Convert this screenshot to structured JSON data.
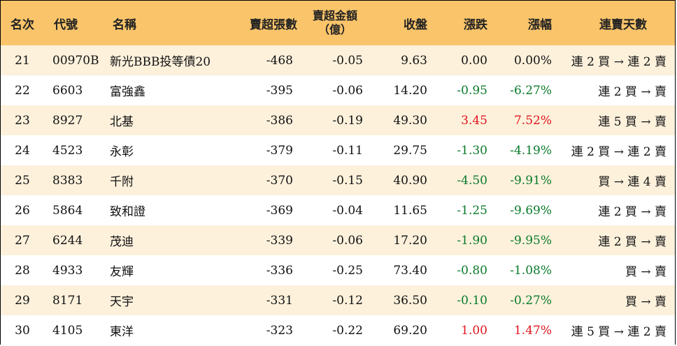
{
  "headers": {
    "rank": "名次",
    "code": "代號",
    "name": "名稱",
    "sell_volume": "賣超張數",
    "sell_amount_line1": "賣超金額",
    "sell_amount_line2": "（億）",
    "close": "收盤",
    "change": "漲跌",
    "change_pct": "漲幅",
    "consecutive_days": "連賣天數"
  },
  "colors": {
    "header_bg": "#f9c46a",
    "stripe_bg": "#fdf1dc",
    "up": "#e0141e",
    "down": "#0a7a2a"
  },
  "rows": [
    {
      "rank": "21",
      "code": "00970B",
      "name": "新光BBB投等債20",
      "volume": "-468",
      "amount": "-0.05",
      "close": "9.63",
      "change": "0.00",
      "pct": "0.00%",
      "days": "連 2 買 → 連 2 賣",
      "dir": "flat"
    },
    {
      "rank": "22",
      "code": "6603",
      "name": "富強鑫",
      "volume": "-395",
      "amount": "-0.06",
      "close": "14.20",
      "change": "-0.95",
      "pct": "-6.27%",
      "days": "連 2 買 → 賣",
      "dir": "down"
    },
    {
      "rank": "23",
      "code": "8927",
      "name": "北基",
      "volume": "-386",
      "amount": "-0.19",
      "close": "49.30",
      "change": "3.45",
      "pct": "7.52%",
      "days": "連 5 買 → 賣",
      "dir": "up"
    },
    {
      "rank": "24",
      "code": "4523",
      "name": "永彰",
      "volume": "-379",
      "amount": "-0.11",
      "close": "29.75",
      "change": "-1.30",
      "pct": "-4.19%",
      "days": "連 2 買 → 連 2 賣",
      "dir": "down"
    },
    {
      "rank": "25",
      "code": "8383",
      "name": "千附",
      "volume": "-370",
      "amount": "-0.15",
      "close": "40.90",
      "change": "-4.50",
      "pct": "-9.91%",
      "days": "買 → 連 4 賣",
      "dir": "down"
    },
    {
      "rank": "26",
      "code": "5864",
      "name": "致和證",
      "volume": "-369",
      "amount": "-0.04",
      "close": "11.65",
      "change": "-1.25",
      "pct": "-9.69%",
      "days": "連 2 買 → 賣",
      "dir": "down"
    },
    {
      "rank": "27",
      "code": "6244",
      "name": "茂迪",
      "volume": "-339",
      "amount": "-0.06",
      "close": "17.20",
      "change": "-1.90",
      "pct": "-9.95%",
      "days": "連 2 買 → 賣",
      "dir": "down"
    },
    {
      "rank": "28",
      "code": "4933",
      "name": "友輝",
      "volume": "-336",
      "amount": "-0.25",
      "close": "73.40",
      "change": "-0.80",
      "pct": "-1.08%",
      "days": "買 → 賣",
      "dir": "down"
    },
    {
      "rank": "29",
      "code": "8171",
      "name": "天宇",
      "volume": "-331",
      "amount": "-0.12",
      "close": "36.50",
      "change": "-0.10",
      "pct": "-0.27%",
      "days": "買 → 賣",
      "dir": "down"
    },
    {
      "rank": "30",
      "code": "4105",
      "name": "東洋",
      "volume": "-323",
      "amount": "-0.22",
      "close": "69.20",
      "change": "1.00",
      "pct": "1.47%",
      "days": "連 5 買 → 連 2 賣",
      "dir": "up"
    }
  ]
}
